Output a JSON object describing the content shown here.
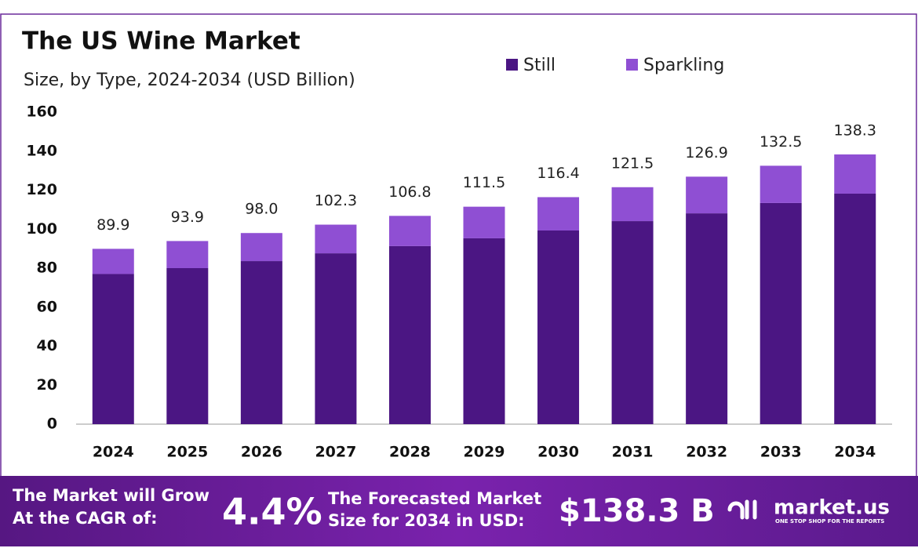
{
  "chart_data": {
    "type": "stacked_bar",
    "title": "The US Wine Market",
    "subtitle": "Size, by Type, 2024-2034 (USD Billion)",
    "categories": [
      "2024",
      "2025",
      "2026",
      "2027",
      "2028",
      "2029",
      "2030",
      "2031",
      "2032",
      "2033",
      "2034"
    ],
    "series": [
      {
        "name": "Still",
        "color": "#4b1683",
        "values": [
          77.0,
          80.0,
          83.6,
          87.6,
          91.3,
          95.3,
          99.3,
          104.1,
          108.1,
          113.4,
          118.2
        ]
      },
      {
        "name": "Sparkling",
        "color": "#8f4fd3",
        "values": [
          12.9,
          13.9,
          14.4,
          14.7,
          15.5,
          16.2,
          17.1,
          17.4,
          18.8,
          19.1,
          20.1
        ]
      }
    ],
    "totals": [
      89.9,
      93.9,
      98.0,
      102.3,
      106.8,
      111.5,
      116.4,
      121.5,
      126.9,
      132.5,
      138.3
    ],
    "total_labels": [
      "89.9",
      "93.9",
      "98.0",
      "102.3",
      "106.8",
      "111.5",
      "116.4",
      "121.5",
      "126.9",
      "132.5",
      "138.3"
    ],
    "ylim": [
      0,
      160
    ],
    "yticks": [
      0,
      20,
      40,
      60,
      80,
      100,
      120,
      140,
      160
    ],
    "grid": false
  },
  "footer": {
    "cagr_text": [
      "The Market will Grow",
      "At the CAGR of:"
    ],
    "cagr": "4.4%",
    "forecast_text": [
      "The Forecasted Market",
      "Size for 2034 in USD:"
    ],
    "forecast": "$138.3 B",
    "brand": "market.us",
    "tagline": "ONE STOP SHOP FOR THE REPORTS"
  }
}
